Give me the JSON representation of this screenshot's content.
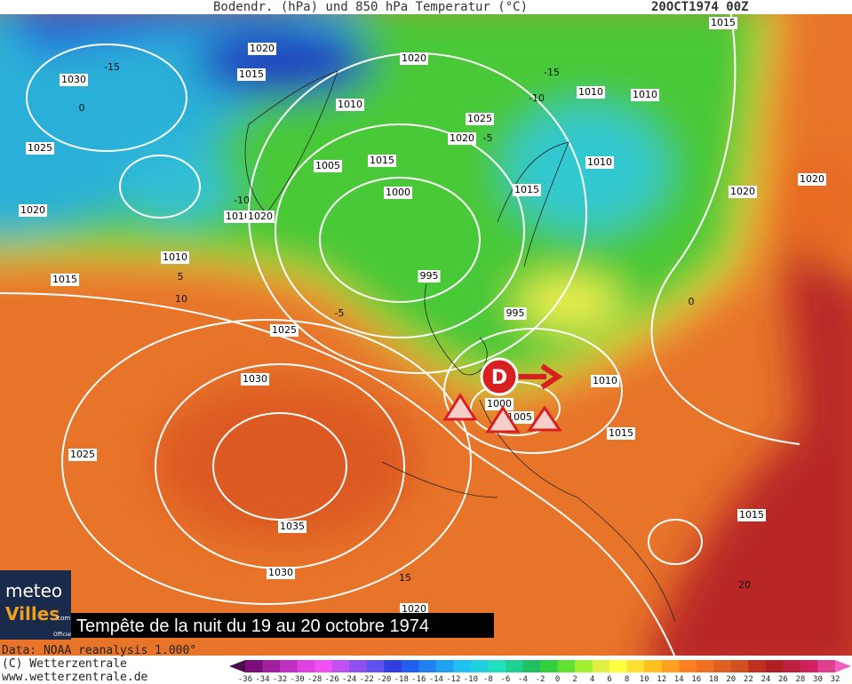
{
  "header": {
    "title": "Bodendr. (hPa) und 850 hPa Temperatur (°C)",
    "date": "20OCT1974 00Z"
  },
  "isobar_labels": [
    "1020",
    "1020",
    "1015",
    "1030",
    "1015",
    "1010",
    "1025",
    "1010",
    "1010",
    "1020",
    "1025",
    "1015",
    "1005",
    "1010",
    "1000",
    "1015",
    "1020",
    "1020",
    "1020",
    "1010",
    "1020",
    "1010",
    "995",
    "1015",
    "995",
    "1025",
    "1030",
    "1010",
    "1000",
    "1005",
    "1015",
    "1025",
    "1035",
    "1015",
    "1030",
    "1020"
  ],
  "isotherm_labels": [
    "-15",
    "-15",
    "-10",
    "-5",
    "-10",
    "5",
    "10",
    "-5",
    "0",
    "15",
    "20",
    "0"
  ],
  "storm": {
    "label": "D"
  },
  "caption": "Tempête de la nuit du 19 au 20 octobre 1974",
  "logo": {
    "line1": "meteo",
    "line2": "Villes",
    "suffix": ".com",
    "tag": "Officiel"
  },
  "footer": {
    "data": "Data: NOAA reanalysis 1.000°",
    "copyright": "(C) Wetterzentrale",
    "url": "www.wetterzentrale.de"
  },
  "colorbar": {
    "ticks": [
      -36,
      -34,
      -32,
      -30,
      -28,
      -26,
      -24,
      -22,
      -20,
      -18,
      -16,
      -14,
      -12,
      -10,
      -8,
      -6,
      -4,
      -2,
      0,
      2,
      4,
      6,
      8,
      10,
      12,
      14,
      16,
      18,
      20,
      22,
      24,
      26,
      28,
      30,
      32
    ]
  }
}
